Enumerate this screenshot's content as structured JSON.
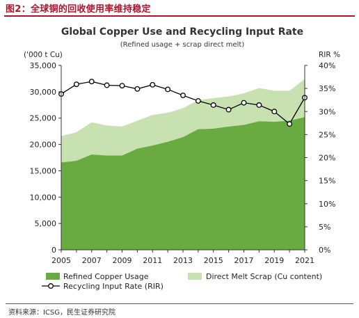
{
  "header": {
    "figure_label": "图2：全球铜的回收使用率维持稳定"
  },
  "footer": {
    "source": "资料来源：ICSG，民生证券研究院"
  },
  "chart_data": {
    "type": "area",
    "title": "Global Copper Use and Recycling Input Rate",
    "subtitle": "(Refined usage + scrap direct melt)",
    "y_left_label": "('000 t Cu)",
    "y_right_label": "RIR %",
    "x": [
      2005,
      2006,
      2007,
      2008,
      2009,
      2010,
      2011,
      2012,
      2013,
      2014,
      2015,
      2016,
      2017,
      2018,
      2019,
      2020,
      2021
    ],
    "x_tick_labels": [
      "2005",
      "2007",
      "2009",
      "2011",
      "2013",
      "2015",
      "2017",
      "2019",
      "2021"
    ],
    "y_left_ticks": [
      "0",
      "5,000",
      "10,000",
      "15,000",
      "20,000",
      "25,000",
      "30,000",
      "35,000"
    ],
    "y_right_ticks": [
      "0%",
      "5%",
      "10%",
      "15%",
      "20%",
      "25%",
      "30%",
      "35%",
      "40%"
    ],
    "y_left_range": [
      0,
      35000
    ],
    "y_right_range": [
      0,
      40
    ],
    "grid": false,
    "legend_position": "bottom",
    "series": [
      {
        "name": "Refined Copper Usage",
        "kind": "area",
        "axis": "left",
        "stack": true,
        "color": "#6aab41",
        "values": [
          16600,
          16900,
          18100,
          17900,
          17900,
          19200,
          19800,
          20500,
          21400,
          22900,
          23000,
          23400,
          23700,
          24400,
          24300,
          24500,
          25200
        ]
      },
      {
        "name": "Direct Melt Scrap (Cu content)",
        "kind": "area",
        "axis": "left",
        "stack": true,
        "color": "#c7e2b0",
        "values": [
          5000,
          5400,
          6100,
          5700,
          5500,
          5300,
          5800,
          5500,
          5500,
          5500,
          5800,
          5700,
          6000,
          6300,
          5900,
          5700,
          7200
        ]
      },
      {
        "name": "Recycling Input Rate (RIR)",
        "kind": "line",
        "axis": "right",
        "color": "#000000",
        "values": [
          33.8,
          35.9,
          36.5,
          35.7,
          35.6,
          34.9,
          35.8,
          34.8,
          33.5,
          32.3,
          31.4,
          30.4,
          31.9,
          31.4,
          30.0,
          27.3,
          33.0
        ]
      }
    ]
  }
}
